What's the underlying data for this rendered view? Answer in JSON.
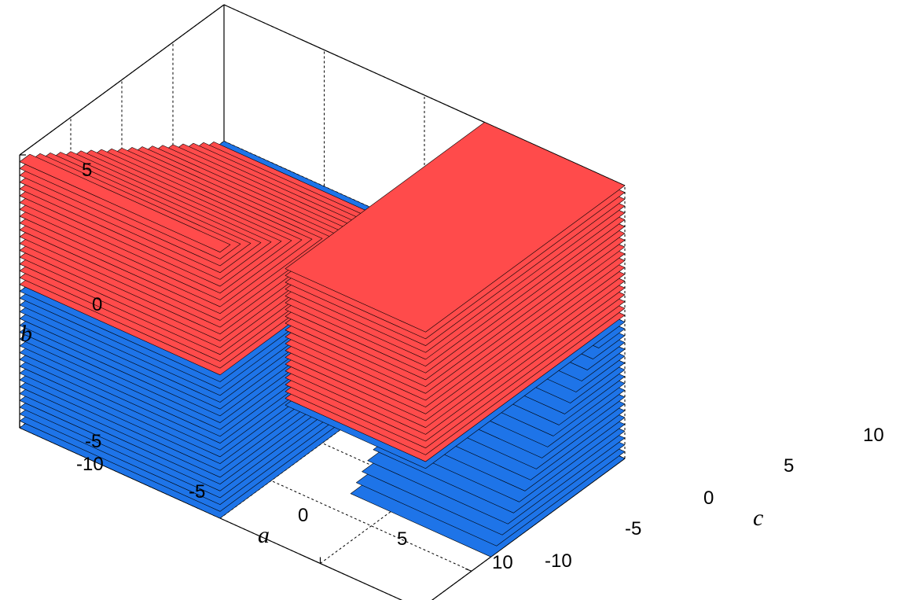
{
  "chart_data": {
    "type": "3d-stacked-planes",
    "title": "",
    "axes": {
      "a": {
        "label": "a",
        "range": [
          -10,
          10
        ],
        "ticks": [
          -10,
          -5,
          0,
          5,
          10
        ],
        "tick_labels": [
          "-10",
          "-5",
          "0",
          "5",
          "10"
        ]
      },
      "b": {
        "label": "b",
        "range": [
          -5,
          5
        ],
        "ticks": [
          -5,
          0,
          5
        ],
        "tick_labels": [
          "-5",
          "0",
          "5"
        ]
      },
      "c": {
        "label": "c",
        "range": [
          -10,
          10
        ],
        "ticks": [
          -10,
          -5,
          0,
          5,
          10
        ],
        "tick_labels": [
          "-10",
          "-5",
          "0",
          "5",
          "10"
        ]
      }
    },
    "grid": true,
    "box": true,
    "slice_step": 0.25,
    "regions": [
      {
        "name": "",
        "color": "#ff4b4b",
        "b_range": [
          0,
          5
        ]
      },
      {
        "name": "",
        "color": "#1e74e8",
        "b_range": [
          -5,
          0
        ]
      }
    ],
    "blocks": [
      {
        "a_range": [
          -10,
          0
        ],
        "c_range": [
          -10,
          10
        ],
        "upper_cut": {
          "condition": "c <= 10 - b / 0.25"
        }
      },
      {
        "a_range": [
          3,
          10
        ],
        "c_range": [
          -10,
          10
        ],
        "lower_cut": {
          "condition": "c >= 8 + b / 0.45"
        }
      }
    ]
  }
}
